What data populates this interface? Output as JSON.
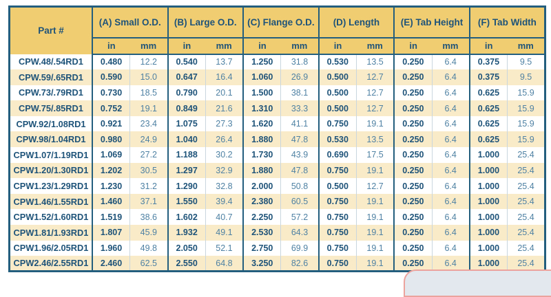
{
  "colors": {
    "header_bg": "#F1CD72",
    "row_bg": "#FFFFFF",
    "row_alt_bg": "#FAEBC8",
    "border_dark": "#235E7E",
    "text_dark": "#1E5379",
    "text_mm": "#4E81A3",
    "thin_divider": "#C9D6DE",
    "tab_border": "#EDA39D",
    "tab_fill": "#E2E8EE"
  },
  "table": {
    "part_header": "Part #",
    "groups": [
      {
        "label": "(A) Small O.D."
      },
      {
        "label": "(B) Large O.D."
      },
      {
        "label": "(C) Flange O.D."
      },
      {
        "label": "(D) Length"
      },
      {
        "label": "(E) Tab Height"
      },
      {
        "label": "(F) Tab Width"
      }
    ],
    "unit_headers": [
      "in",
      "mm"
    ],
    "rows": [
      {
        "part": "CPW.48/.54RD1",
        "values": [
          "0.480",
          "12.2",
          "0.540",
          "13.7",
          "1.250",
          "31.8",
          "0.530",
          "13.5",
          "0.250",
          "6.4",
          "0.375",
          "9.5"
        ]
      },
      {
        "part": "CPW.59/.65RD1",
        "values": [
          "0.590",
          "15.0",
          "0.647",
          "16.4",
          "1.060",
          "26.9",
          "0.500",
          "12.7",
          "0.250",
          "6.4",
          "0.375",
          "9.5"
        ]
      },
      {
        "part": "CPW.73/.79RD1",
        "values": [
          "0.730",
          "18.5",
          "0.790",
          "20.1",
          "1.500",
          "38.1",
          "0.500",
          "12.7",
          "0.250",
          "6.4",
          "0.625",
          "15.9"
        ]
      },
      {
        "part": "CPW.75/.85RD1",
        "values": [
          "0.752",
          "19.1",
          "0.849",
          "21.6",
          "1.310",
          "33.3",
          "0.500",
          "12.7",
          "0.250",
          "6.4",
          "0.625",
          "15.9"
        ]
      },
      {
        "part": "CPW.92/1.08RD1",
        "values": [
          "0.921",
          "23.4",
          "1.075",
          "27.3",
          "1.620",
          "41.1",
          "0.750",
          "19.1",
          "0.250",
          "6.4",
          "0.625",
          "15.9"
        ]
      },
      {
        "part": "CPW.98/1.04RD1",
        "values": [
          "0.980",
          "24.9",
          "1.040",
          "26.4",
          "1.880",
          "47.8",
          "0.530",
          "13.5",
          "0.250",
          "6.4",
          "0.625",
          "15.9"
        ]
      },
      {
        "part": "CPW1.07/1.19RD1",
        "values": [
          "1.069",
          "27.2",
          "1.188",
          "30.2",
          "1.730",
          "43.9",
          "0.690",
          "17.5",
          "0.250",
          "6.4",
          "1.000",
          "25.4"
        ]
      },
      {
        "part": "CPW1.20/1.30RD1",
        "values": [
          "1.202",
          "30.5",
          "1.297",
          "32.9",
          "1.880",
          "47.8",
          "0.750",
          "19.1",
          "0.250",
          "6.4",
          "1.000",
          "25.4"
        ]
      },
      {
        "part": "CPW1.23/1.29RD1",
        "values": [
          "1.230",
          "31.2",
          "1.290",
          "32.8",
          "2.000",
          "50.8",
          "0.500",
          "12.7",
          "0.250",
          "6.4",
          "1.000",
          "25.4"
        ]
      },
      {
        "part": "CPW1.46/1.55RD1",
        "values": [
          "1.460",
          "37.1",
          "1.550",
          "39.4",
          "2.380",
          "60.5",
          "0.750",
          "19.1",
          "0.250",
          "6.4",
          "1.000",
          "25.4"
        ]
      },
      {
        "part": "CPW1.52/1.60RD1",
        "values": [
          "1.519",
          "38.6",
          "1.602",
          "40.7",
          "2.250",
          "57.2",
          "0.750",
          "19.1",
          "0.250",
          "6.4",
          "1.000",
          "25.4"
        ]
      },
      {
        "part": "CPW1.81/1.93RD1",
        "values": [
          "1.807",
          "45.9",
          "1.932",
          "49.1",
          "2.530",
          "64.3",
          "0.750",
          "19.1",
          "0.250",
          "6.4",
          "1.000",
          "25.4"
        ]
      },
      {
        "part": "CPW1.96/2.05RD1",
        "values": [
          "1.960",
          "49.8",
          "2.050",
          "52.1",
          "2.750",
          "69.9",
          "0.750",
          "19.1",
          "0.250",
          "6.4",
          "1.000",
          "25.4"
        ]
      },
      {
        "part": "CPW2.46/2.55RD1",
        "values": [
          "2.460",
          "62.5",
          "2.550",
          "64.8",
          "3.250",
          "82.6",
          "0.750",
          "19.1",
          "0.250",
          "6.4",
          "1.000",
          "25.4"
        ]
      }
    ]
  }
}
